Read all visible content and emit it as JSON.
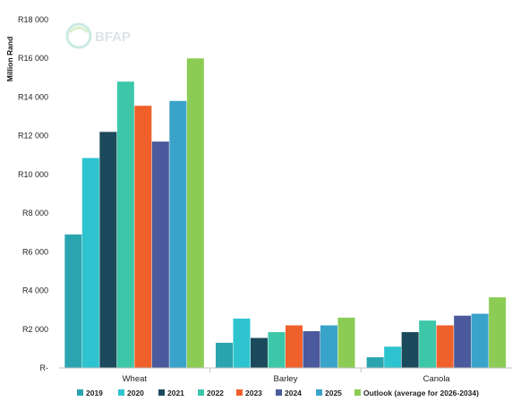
{
  "chart_data": {
    "type": "bar",
    "ylabel": "Million Rand",
    "categories": [
      "Wheat",
      "Barley",
      "Canola"
    ],
    "ylim": [
      0,
      18000
    ],
    "yticks": [
      {
        "value": 18000,
        "label": "R18 000"
      },
      {
        "value": 16000,
        "label": "R16 000"
      },
      {
        "value": 14000,
        "label": "R14 000"
      },
      {
        "value": 12000,
        "label": "R12 000"
      },
      {
        "value": 10000,
        "label": "R10 000"
      },
      {
        "value": 8000,
        "label": "R8 000"
      },
      {
        "value": 6000,
        "label": "R6 000"
      },
      {
        "value": 4000,
        "label": "R4 000"
      },
      {
        "value": 2000,
        "label": "R2 000"
      },
      {
        "value": 0,
        "label": "R-"
      }
    ],
    "grid": false,
    "legend_position": "bottom",
    "series": [
      {
        "name": "2019",
        "color": "#2aa5b0",
        "values": [
          6900,
          1300,
          550
        ]
      },
      {
        "name": "2020",
        "color": "#2ec4cf",
        "values": [
          10850,
          2550,
          1100
        ]
      },
      {
        "name": "2021",
        "color": "#1b4a5c",
        "values": [
          12200,
          1550,
          1850
        ]
      },
      {
        "name": "2022",
        "color": "#3cc7a8",
        "values": [
          14800,
          1850,
          2450
        ]
      },
      {
        "name": "2023",
        "color": "#f0602a",
        "values": [
          13550,
          2200,
          2200
        ]
      },
      {
        "name": "2024",
        "color": "#4b5a9c",
        "values": [
          11700,
          1900,
          2700
        ]
      },
      {
        "name": "2025",
        "color": "#3aa3c9",
        "values": [
          13800,
          2200,
          2800
        ]
      },
      {
        "name": "Outlook (average for 2026-2034)",
        "color": "#8ccc55",
        "values": [
          16000,
          2600,
          3650
        ]
      }
    ]
  },
  "logo": {
    "text": "BFAP",
    "icon": "bfap-globe-logo"
  }
}
